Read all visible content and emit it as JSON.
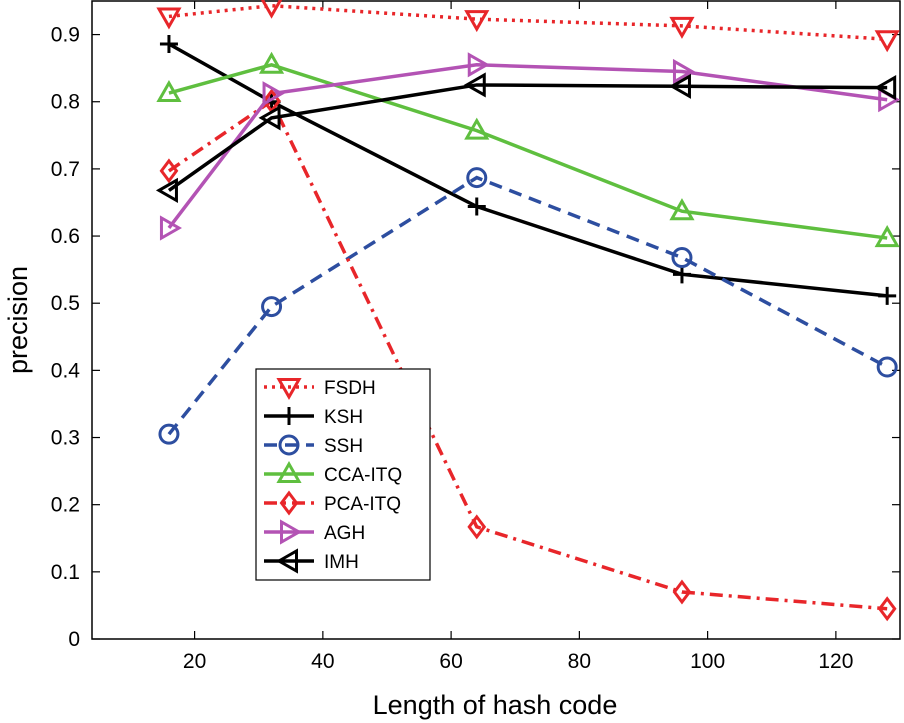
{
  "chart_data": {
    "type": "line",
    "xlabel": "Length of hash code",
    "ylabel": "precision",
    "xlim": [
      4,
      130
    ],
    "ylim": [
      0,
      0.95
    ],
    "xticks": [
      20,
      40,
      60,
      80,
      100,
      120
    ],
    "yticks": [
      0,
      0.1,
      0.2,
      0.3,
      0.4,
      0.5,
      0.6,
      0.7,
      0.8,
      0.9
    ],
    "xtick_labels": [
      "20",
      "40",
      "60",
      "80",
      "100",
      "120"
    ],
    "ytick_labels": [
      "0",
      "0.1",
      "0.2",
      "0.3",
      "0.4",
      "0.5",
      "0.6",
      "0.7",
      "0.8",
      "0.9"
    ],
    "x": [
      16,
      32,
      64,
      96,
      128
    ],
    "grid": false,
    "legend_position": "lower-left",
    "series": [
      {
        "name": "FSDH",
        "values": [
          0.927,
          0.943,
          0.923,
          0.913,
          0.893
        ],
        "color": "#e8262a",
        "dash": "dotted",
        "marker": "triangle-down"
      },
      {
        "name": "KSH",
        "values": [
          0.886,
          0.8,
          0.644,
          0.543,
          0.511
        ],
        "color": "#000000",
        "dash": "solid",
        "marker": "plus"
      },
      {
        "name": "SSH",
        "values": [
          0.305,
          0.495,
          0.687,
          0.568,
          0.405
        ],
        "color": "#2d4ea0",
        "dash": "dashed",
        "marker": "circle"
      },
      {
        "name": "CCA-ITQ",
        "values": [
          0.813,
          0.855,
          0.757,
          0.637,
          0.597
        ],
        "color": "#5fbf3f",
        "dash": "solid",
        "marker": "triangle-up"
      },
      {
        "name": "PCA-ITQ",
        "values": [
          0.697,
          0.801,
          0.167,
          0.07,
          0.045
        ],
        "color": "#e8262a",
        "dash": "dashdot",
        "marker": "diamond"
      },
      {
        "name": "AGH",
        "values": [
          0.612,
          0.812,
          0.855,
          0.845,
          0.803
        ],
        "color": "#b353b4",
        "dash": "solid",
        "marker": "triangle-right"
      },
      {
        "name": "IMH",
        "values": [
          0.668,
          0.776,
          0.825,
          0.823,
          0.821
        ],
        "color": "#000000",
        "dash": "solid",
        "marker": "triangle-left"
      }
    ]
  }
}
